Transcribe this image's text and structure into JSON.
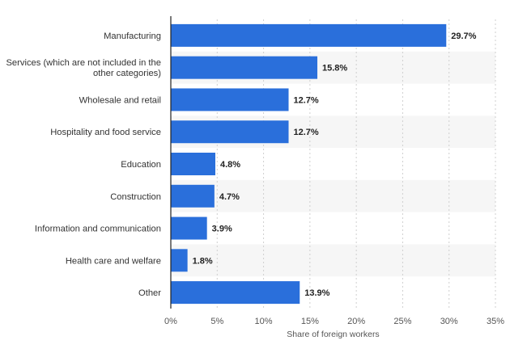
{
  "chart_data": {
    "type": "bar",
    "orientation": "horizontal",
    "categories": [
      [
        "Manufacturing"
      ],
      [
        "Services (which are not included in the",
        "other categories)"
      ],
      [
        "Wholesale and retail"
      ],
      [
        "Hospitality and food service"
      ],
      [
        "Education"
      ],
      [
        "Construction"
      ],
      [
        "Information and communication"
      ],
      [
        "Health care and welfare"
      ],
      [
        "Other"
      ]
    ],
    "values": [
      29.7,
      15.8,
      12.7,
      12.7,
      4.8,
      4.7,
      3.9,
      1.8,
      13.9
    ],
    "value_labels": [
      "29.7%",
      "15.8%",
      "12.7%",
      "12.7%",
      "4.8%",
      "4.7%",
      "3.9%",
      "1.8%",
      "13.9%"
    ],
    "xlim": [
      0,
      35
    ],
    "x_ticks": [
      0,
      5,
      10,
      15,
      20,
      25,
      30,
      35
    ],
    "x_tick_labels": [
      "0%",
      "5%",
      "10%",
      "15%",
      "20%",
      "25%",
      "30%",
      "35%"
    ],
    "xlabel": "Share of foreign workers",
    "ylabel": "",
    "title": "",
    "grid": "vertical dashed",
    "colors": {
      "bar": "#2a6fdb",
      "band": "#f6f6f6",
      "grid": "#cfcfcf",
      "axis": "#222222",
      "label_text": "#333333",
      "value_text": "#222222",
      "tick_text": "#555555"
    }
  }
}
